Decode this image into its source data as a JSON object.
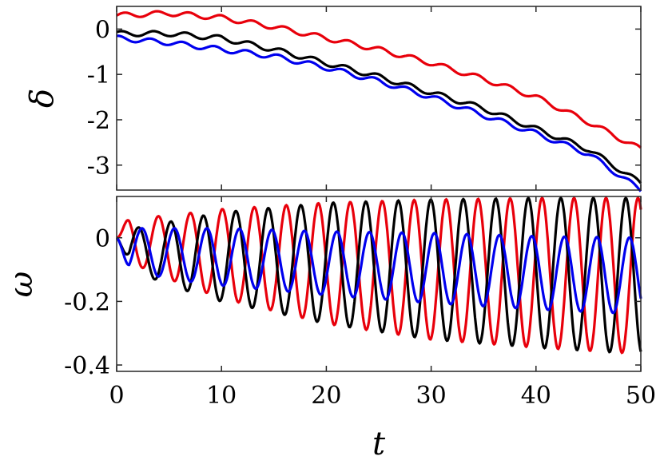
{
  "chart_data": [
    {
      "type": "line",
      "panel": "top",
      "ylabel": "δ",
      "xlim": [
        0,
        50
      ],
      "ylim": [
        -3.55,
        0.5
      ],
      "yticks": [
        0,
        -1,
        -2,
        -3
      ],
      "ytick_labels": [
        "0",
        "-1",
        "-2",
        "-3"
      ],
      "grid": false,
      "series": [
        {
          "color": "#e8000b",
          "x": [
            0,
            5,
            10,
            15,
            20,
            25,
            30,
            35,
            40,
            45,
            50
          ],
          "y": [
            0.3,
            0.35,
            0.25,
            0.05,
            -0.2,
            -0.45,
            -0.75,
            -1.1,
            -1.5,
            -2.05,
            -2.65
          ]
        },
        {
          "color": "#000000",
          "x": [
            0,
            5,
            10,
            15,
            20,
            25,
            30,
            35,
            40,
            45,
            50
          ],
          "y": [
            -0.1,
            -0.1,
            -0.2,
            -0.45,
            -0.75,
            -1.05,
            -1.4,
            -1.75,
            -2.2,
            -2.65,
            -3.4
          ]
        },
        {
          "color": "#0000ee",
          "x": [
            0,
            5,
            10,
            15,
            20,
            25,
            30,
            35,
            40,
            45,
            50
          ],
          "y": [
            -0.2,
            -0.3,
            -0.45,
            -0.6,
            -0.85,
            -1.15,
            -1.5,
            -1.9,
            -2.3,
            -2.75,
            -3.55
          ]
        }
      ]
    },
    {
      "type": "line",
      "panel": "bottom",
      "xlabel": "t",
      "ylabel": "ω",
      "xlim": [
        0,
        50
      ],
      "ylim": [
        -0.42,
        0.13
      ],
      "xticks": [
        0,
        10,
        20,
        30,
        40,
        50
      ],
      "xtick_labels": [
        "0",
        "10",
        "20",
        "30",
        "40",
        "50"
      ],
      "yticks": [
        0,
        -0.2,
        -0.4
      ],
      "ytick_labels": [
        "0",
        "-0.2",
        "-0.4"
      ],
      "grid": false,
      "series": [
        {
          "color": "#e8000b",
          "period": 3.05,
          "phase_deg": -20,
          "start": 0,
          "center": [
            [
              0,
              0.0
            ],
            [
              5,
              -0.03
            ],
            [
              10,
              -0.05
            ],
            [
              20,
              -0.08
            ],
            [
              30,
              -0.1
            ],
            [
              40,
              -0.11
            ],
            [
              50,
              -0.12
            ]
          ],
          "amplitude": [
            [
              0,
              0.06
            ],
            [
              5,
              0.1
            ],
            [
              10,
              0.14
            ],
            [
              20,
              0.19
            ],
            [
              30,
              0.22
            ],
            [
              40,
              0.235
            ],
            [
              50,
              0.245
            ]
          ]
        },
        {
          "color": "#000000",
          "period": 3.1,
          "phase_deg": -150,
          "start": 0,
          "center": [
            [
              0,
              -0.03
            ],
            [
              5,
              -0.05
            ],
            [
              10,
              -0.06
            ],
            [
              20,
              -0.08
            ],
            [
              30,
              -0.1
            ],
            [
              40,
              -0.11
            ],
            [
              50,
              -0.12
            ]
          ],
          "amplitude": [
            [
              0,
              0.05
            ],
            [
              5,
              0.1
            ],
            [
              10,
              0.14
            ],
            [
              20,
              0.19
            ],
            [
              30,
              0.22
            ],
            [
              40,
              0.235
            ],
            [
              50,
              0.245
            ]
          ]
        },
        {
          "color": "#0000ee",
          "period": 3.1,
          "phase_deg": 170,
          "start": 0,
          "center": [
            [
              0,
              -0.03
            ],
            [
              5,
              -0.05
            ],
            [
              10,
              -0.06
            ],
            [
              20,
              -0.08
            ],
            [
              30,
              -0.095
            ],
            [
              40,
              -0.11
            ],
            [
              50,
              -0.12
            ]
          ],
          "amplitude": [
            [
              0,
              0.06
            ],
            [
              5,
              0.08
            ],
            [
              10,
              0.09
            ],
            [
              20,
              0.1
            ],
            [
              30,
              0.11
            ],
            [
              40,
              0.115
            ],
            [
              50,
              0.12
            ]
          ]
        }
      ]
    }
  ]
}
